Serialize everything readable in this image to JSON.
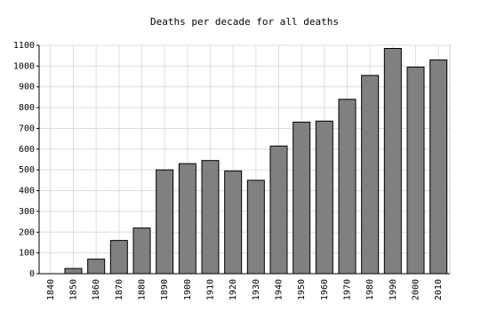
{
  "chart_data": {
    "type": "bar",
    "title": "Deaths per decade for all deaths",
    "categories": [
      "1840",
      "1850",
      "1860",
      "1870",
      "1880",
      "1890",
      "1900",
      "1910",
      "1920",
      "1930",
      "1940",
      "1950",
      "1960",
      "1970",
      "1980",
      "1990",
      "2000",
      "2010"
    ],
    "values": [
      0,
      25,
      70,
      160,
      220,
      500,
      530,
      545,
      495,
      450,
      615,
      730,
      735,
      840,
      955,
      1085,
      995,
      1030
    ],
    "color": "#808080",
    "ylim": [
      0,
      1100
    ],
    "yticks": [
      0,
      100,
      200,
      300,
      400,
      500,
      600,
      700,
      800,
      900,
      1000,
      1100
    ],
    "grid": true
  }
}
